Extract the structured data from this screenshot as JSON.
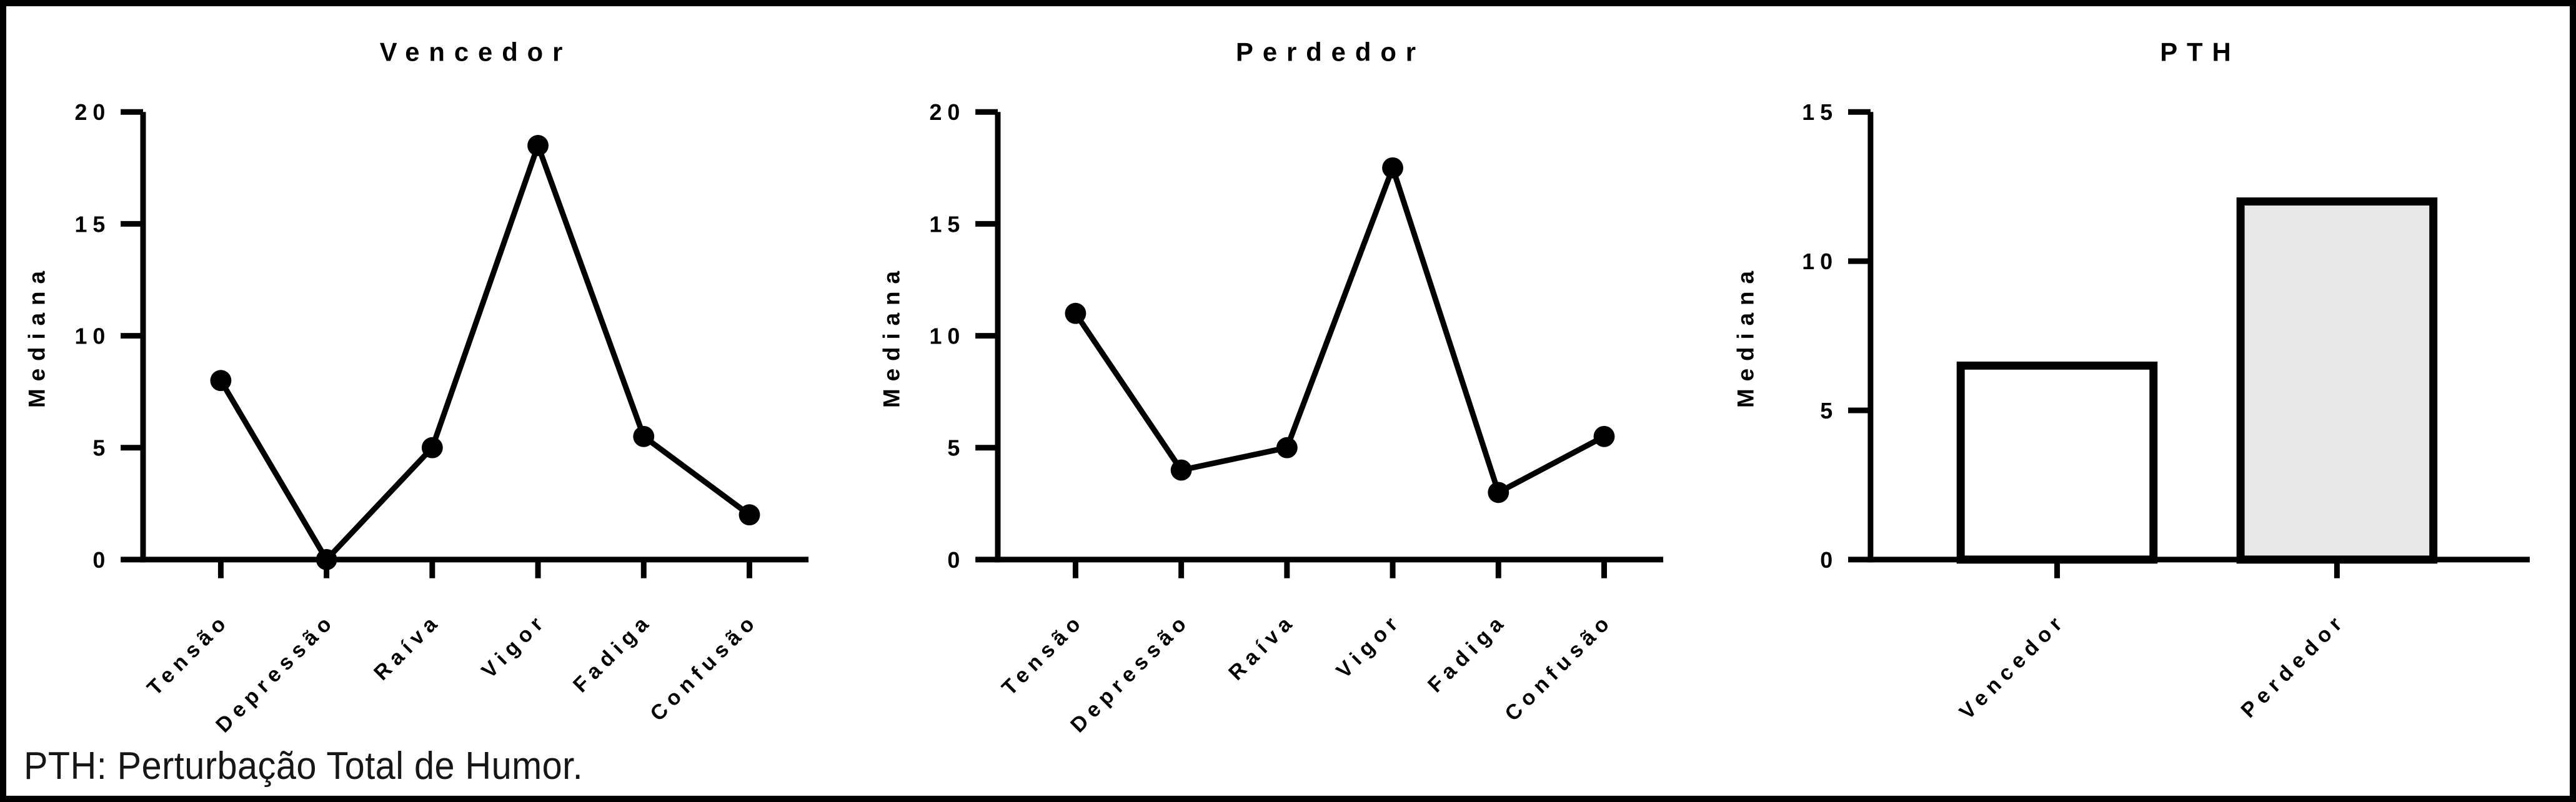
{
  "figure": {
    "footnote": "PTH: Perturbação Total de Humor.",
    "background": "#ffffff",
    "frame_color": "#000000",
    "ink_color": "#000000"
  },
  "chart_data": [
    {
      "type": "line",
      "title": "Vencedor",
      "ylabel": "Mediana",
      "xlabel": "",
      "ylim": [
        0,
        20
      ],
      "yticks": [
        0,
        5,
        10,
        15,
        20
      ],
      "categories": [
        "Tensão",
        "Depressão",
        "Raíva",
        "Vigor",
        "Fadiga",
        "Confusão"
      ],
      "values": [
        8,
        0,
        5,
        18.5,
        5.5,
        2
      ],
      "marker": "filled-circle",
      "line_color": "#000000",
      "grid": "off",
      "legend": "none"
    },
    {
      "type": "line",
      "title": "Perdedor",
      "ylabel": "Mediana",
      "xlabel": "",
      "ylim": [
        0,
        20
      ],
      "yticks": [
        0,
        5,
        10,
        15,
        20
      ],
      "categories": [
        "Tensão",
        "Depressão",
        "Raíva",
        "Vigor",
        "Fadiga",
        "Confusão"
      ],
      "values": [
        11,
        4,
        5,
        17.5,
        3,
        5.5
      ],
      "marker": "filled-circle",
      "line_color": "#000000",
      "grid": "off",
      "legend": "none"
    },
    {
      "type": "bar",
      "title": "PTH",
      "ylabel": "Mediana",
      "xlabel": "",
      "ylim": [
        0,
        15
      ],
      "yticks": [
        0,
        5,
        10,
        15
      ],
      "categories": [
        "Vencedor",
        "Perdedor"
      ],
      "values": [
        6.5,
        12
      ],
      "bar_fills": [
        "#ffffff",
        "#e7e7e7"
      ],
      "bar_border": "#000000",
      "grid": "off",
      "legend": "none"
    }
  ]
}
